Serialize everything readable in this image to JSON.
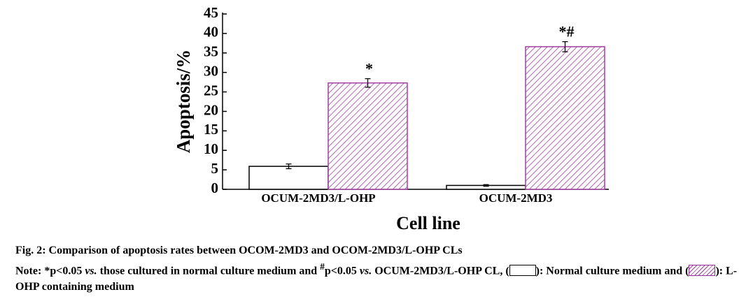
{
  "chart_data": {
    "type": "bar",
    "ylabel": "Apoptosis/%",
    "xlabel": "Cell line",
    "categories": [
      "OCUM-2MD3/L-OHP",
      "OCUM-2MD3"
    ],
    "series": [
      {
        "name": "Normal culture medium",
        "color": "#ffffff",
        "values": [
          5.9,
          1.0
        ],
        "errors": [
          0.6,
          0.2
        ]
      },
      {
        "name": "L-OHP containing medium",
        "color": "#a040a0",
        "values": [
          27.3,
          36.6
        ],
        "errors": [
          1.1,
          1.3
        ],
        "annotations": [
          "*",
          "*#"
        ]
      }
    ],
    "ylim": [
      0,
      45
    ],
    "yticks": [
      0,
      5,
      10,
      15,
      20,
      25,
      30,
      35,
      40,
      45
    ]
  },
  "caption": {
    "title": "Fig. 2: Comparison of apoptosis rates between OCOM-2MD3 and OCOM-2MD3/L-OHP CLs",
    "note": [
      "Note: *p<0.05 ",
      "vs.",
      " those cultured in normal culture medium and ",
      "#",
      "p<0.05 ",
      "vs.",
      " OCUM-2MD3/L-OHP CL, (",
      "): ",
      " and (",
      "): "
    ]
  }
}
